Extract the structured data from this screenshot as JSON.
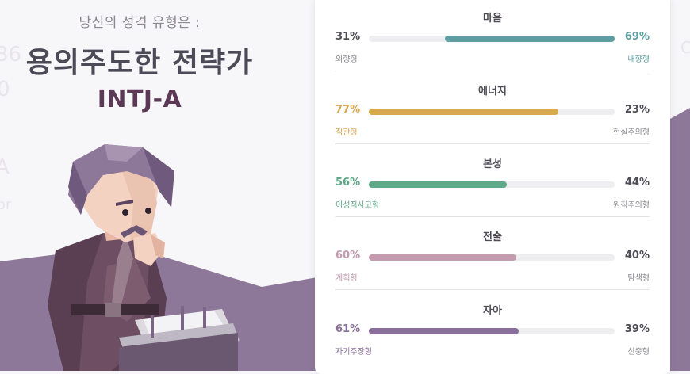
{
  "header": {
    "subtitle": "당신의 성격 유형은 :",
    "type_name": "용의주도한 전략가",
    "type_code": "INTJ-A"
  },
  "colors": {
    "mind": "#5e9ea0",
    "energy": "#d9a74e",
    "nature": "#5fa888",
    "tactics": "#c49aae",
    "identity": "#8a6f9a",
    "neutral_text": "#4f4c56",
    "wave": "#8e789a"
  },
  "traits": [
    {
      "title": "마음",
      "left_pct": "31%",
      "right_pct": "69%",
      "left_label": "외향형",
      "right_label": "내향형",
      "fill_fraction": 0.69,
      "fill_side": "right",
      "color_key": "mind"
    },
    {
      "title": "에너지",
      "left_pct": "77%",
      "right_pct": "23%",
      "left_label": "직관형",
      "right_label": "현실주의형",
      "fill_fraction": 0.77,
      "fill_side": "left",
      "color_key": "energy"
    },
    {
      "title": "본성",
      "left_pct": "56%",
      "right_pct": "44%",
      "left_label": "이성적사고형",
      "right_label": "원칙주의형",
      "fill_fraction": 0.56,
      "fill_side": "left",
      "color_key": "nature"
    },
    {
      "title": "전술",
      "left_pct": "60%",
      "right_pct": "40%",
      "left_label": "계획형",
      "right_label": "탐색형",
      "fill_fraction": 0.6,
      "fill_side": "left",
      "color_key": "tactics"
    },
    {
      "title": "자아",
      "left_pct": "61%",
      "right_pct": "39%",
      "left_label": "자기주장형",
      "right_label": "신중형",
      "fill_fraction": 0.61,
      "fill_side": "left",
      "color_key": "identity"
    }
  ],
  "figure": {
    "icon": "strategist-character-illustration"
  }
}
